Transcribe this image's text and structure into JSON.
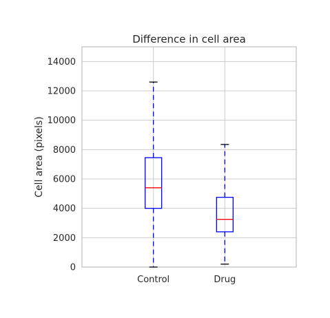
{
  "chart_data": {
    "type": "box",
    "title": "Difference in cell area",
    "xlabel": "",
    "ylabel": "Cell area (pixels)",
    "ylim": [
      0,
      15000
    ],
    "yticks": [
      0,
      2000,
      4000,
      6000,
      8000,
      10000,
      12000,
      14000
    ],
    "ytick_labels": [
      "0",
      "2000",
      "4000",
      "6000",
      "8000",
      "10000",
      "12000",
      "14000"
    ],
    "grid": true,
    "categories": [
      "Control",
      "Drug"
    ],
    "boxes": [
      {
        "label": "Control",
        "whisker_low": 0,
        "q1": 4000,
        "median": 5400,
        "q3": 7450,
        "whisker_high": 12600
      },
      {
        "label": "Drug",
        "whisker_low": 200,
        "q1": 2400,
        "median": 3250,
        "q3": 4750,
        "whisker_high": 8350
      }
    ],
    "colors": {
      "box": "#0000ff",
      "median": "#ff0000",
      "cap": "#000000",
      "grid": "#cccccc",
      "frame": "#bfbfbf"
    }
  }
}
